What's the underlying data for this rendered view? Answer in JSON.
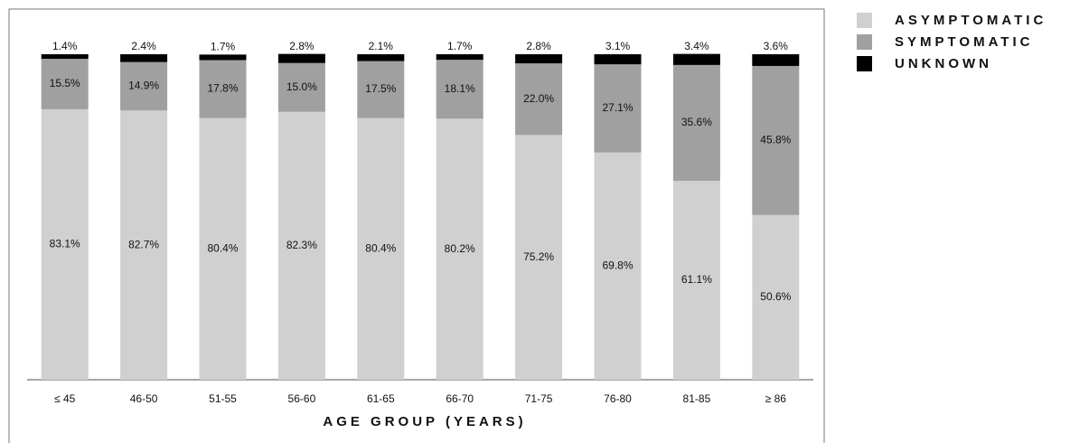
{
  "chart_data": {
    "type": "stacked-bar",
    "x_label": "AGE GROUP (YEARS)",
    "categories": [
      "≤ 45",
      "46-50",
      "51-55",
      "56-60",
      "61-65",
      "66-70",
      "71-75",
      "76-80",
      "81-85",
      "≥ 86"
    ],
    "ylim": [
      0,
      100
    ],
    "legend": "right",
    "series": [
      {
        "name": "ASYMPTOMATIC",
        "color": "#d0d0d0",
        "values": [
          83.1,
          82.7,
          80.4,
          82.3,
          80.4,
          80.2,
          75.2,
          69.8,
          61.1,
          50.6
        ],
        "value_labels": [
          "83.1%",
          "82.7%",
          "80.4%",
          "82.3%",
          "80.4%",
          "80.2%",
          "75.2%",
          "69.8%",
          "61.1%",
          "50.6%"
        ]
      },
      {
        "name": "SYMPTOMATIC",
        "color": "#a0a0a0",
        "values": [
          15.5,
          14.9,
          17.8,
          15.0,
          17.5,
          18.1,
          22.0,
          27.1,
          35.6,
          45.8
        ],
        "value_labels": [
          "15.5%",
          "14.9%",
          "17.8%",
          "15.0%",
          "17.5%",
          "18.1%",
          "22.0%",
          "27.1%",
          "35.6%",
          "45.8%"
        ]
      },
      {
        "name": "UNKNOWN",
        "color": "#000000",
        "values": [
          1.4,
          2.4,
          1.7,
          2.8,
          2.1,
          1.7,
          2.8,
          3.1,
          3.4,
          3.6
        ],
        "value_labels": [
          "1.4%",
          "2.4%",
          "1.7%",
          "2.8%",
          "2.1%",
          "1.7%",
          "2.8%",
          "3.1%",
          "3.4%",
          "3.6%"
        ]
      }
    ]
  }
}
